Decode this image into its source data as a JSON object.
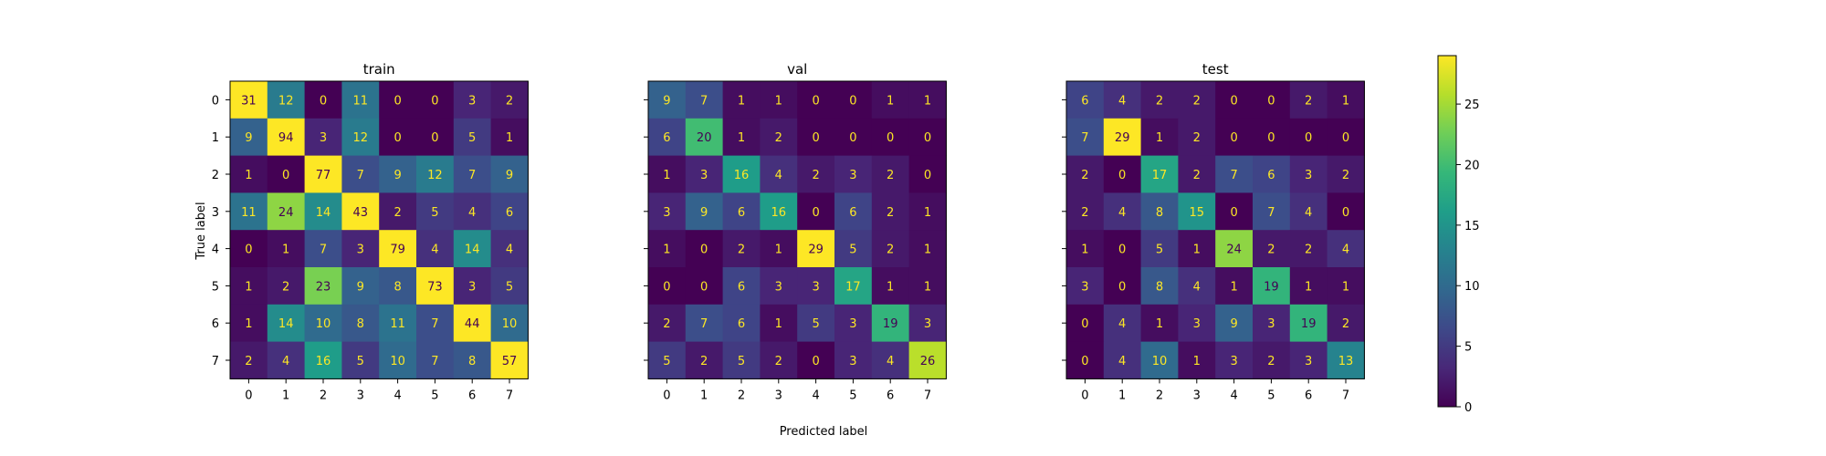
{
  "chart_data": {
    "type": "heatmap",
    "shared": {
      "xlabel": "Predicted label",
      "ylabel": "True label",
      "labels": [
        "0",
        "1",
        "2",
        "3",
        "4",
        "5",
        "6",
        "7"
      ],
      "colormap": "viridis",
      "colorbar": {
        "min": 0,
        "max": 29,
        "ticks": [
          0,
          5,
          10,
          15,
          20,
          25
        ]
      },
      "annotation_colors": {
        "light": "#fde725",
        "dark": "#440154"
      }
    },
    "panels": [
      {
        "title": "train",
        "matrix": [
          [
            31,
            12,
            0,
            11,
            0,
            0,
            3,
            2
          ],
          [
            9,
            94,
            3,
            12,
            0,
            0,
            5,
            1
          ],
          [
            1,
            0,
            77,
            7,
            9,
            12,
            7,
            9
          ],
          [
            11,
            24,
            14,
            43,
            2,
            5,
            4,
            6
          ],
          [
            0,
            1,
            7,
            3,
            79,
            4,
            14,
            4
          ],
          [
            1,
            2,
            23,
            9,
            8,
            73,
            3,
            5
          ],
          [
            1,
            14,
            10,
            8,
            11,
            7,
            44,
            10
          ],
          [
            2,
            4,
            16,
            5,
            10,
            7,
            8,
            57
          ]
        ]
      },
      {
        "title": "val",
        "matrix": [
          [
            9,
            7,
            1,
            1,
            0,
            0,
            1,
            1
          ],
          [
            6,
            20,
            1,
            2,
            0,
            0,
            0,
            0
          ],
          [
            1,
            3,
            16,
            4,
            2,
            3,
            2,
            0
          ],
          [
            3,
            9,
            6,
            16,
            0,
            6,
            2,
            1
          ],
          [
            1,
            0,
            2,
            1,
            29,
            5,
            2,
            1
          ],
          [
            0,
            0,
            6,
            3,
            3,
            17,
            1,
            1
          ],
          [
            2,
            7,
            6,
            1,
            5,
            3,
            19,
            3
          ],
          [
            5,
            2,
            5,
            2,
            0,
            3,
            4,
            26
          ]
        ]
      },
      {
        "title": "test",
        "matrix": [
          [
            6,
            4,
            2,
            2,
            0,
            0,
            2,
            1
          ],
          [
            7,
            29,
            1,
            2,
            0,
            0,
            0,
            0
          ],
          [
            2,
            0,
            17,
            2,
            7,
            6,
            3,
            2
          ],
          [
            2,
            4,
            8,
            15,
            0,
            7,
            4,
            0
          ],
          [
            1,
            0,
            5,
            1,
            24,
            2,
            2,
            4
          ],
          [
            3,
            0,
            8,
            4,
            1,
            19,
            1,
            1
          ],
          [
            0,
            4,
            1,
            3,
            9,
            3,
            19,
            2
          ],
          [
            0,
            4,
            10,
            1,
            3,
            2,
            3,
            13
          ]
        ]
      }
    ]
  }
}
